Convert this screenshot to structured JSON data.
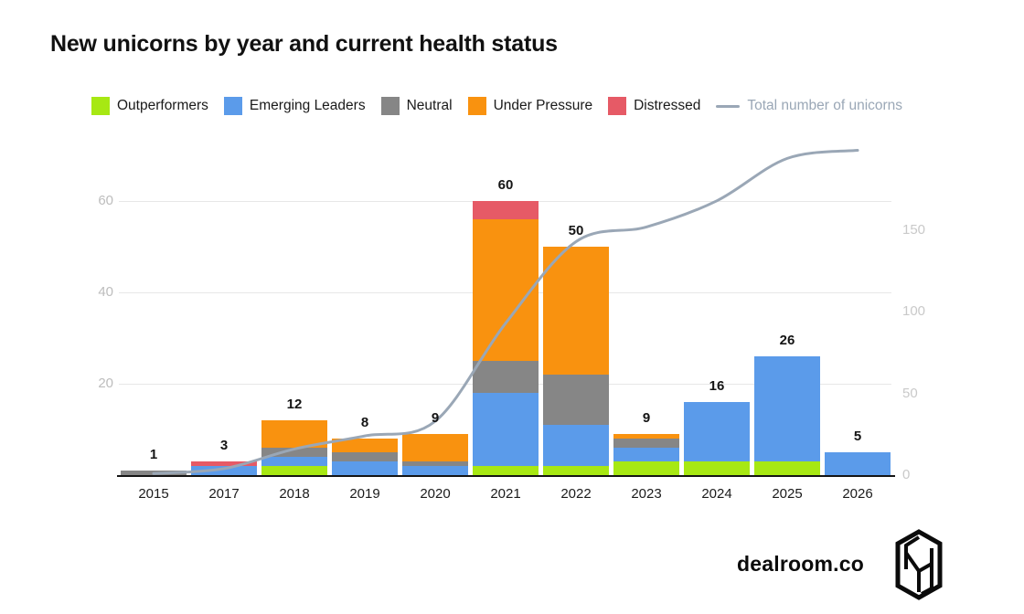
{
  "title": "New unicorns by year and current health status",
  "branding": {
    "name": "dealroom.co"
  },
  "colors": {
    "outperformers": "#A7E813",
    "emerging_leaders": "#5B9BEA",
    "neutral": "#868686",
    "under_pressure": "#F9920F",
    "distressed": "#E65A66",
    "trend_line": "#9AA7B6",
    "grid": "#e7e7e7",
    "axis_text": "#bdbdbd"
  },
  "chart_data": {
    "type": "bar",
    "stacked": true,
    "grid": "horizontal",
    "legend_position": "top",
    "categories": [
      "2015",
      "2017",
      "2018",
      "2019",
      "2020",
      "2021",
      "2022",
      "2023",
      "2024",
      "2025",
      "2026"
    ],
    "series": [
      {
        "name": "Outperformers",
        "type": "bar",
        "color": "#A7E813",
        "values": [
          0,
          0,
          2,
          0,
          0,
          2,
          2,
          3,
          3,
          3,
          0
        ]
      },
      {
        "name": "Emerging Leaders",
        "type": "bar",
        "color": "#5B9BEA",
        "values": [
          0,
          2,
          2,
          3,
          2,
          16,
          9,
          3,
          13,
          23,
          5
        ]
      },
      {
        "name": "Neutral",
        "type": "bar",
        "color": "#868686",
        "values": [
          1,
          0,
          2,
          2,
          1,
          7,
          11,
          2,
          0,
          0,
          0
        ]
      },
      {
        "name": "Under Pressure",
        "type": "bar",
        "color": "#F9920F",
        "values": [
          0,
          0,
          6,
          3,
          6,
          31,
          28,
          1,
          0,
          0,
          0
        ]
      },
      {
        "name": "Distressed",
        "type": "bar",
        "color": "#E65A66",
        "values": [
          0,
          1,
          0,
          0,
          0,
          4,
          0,
          0,
          0,
          0,
          0
        ]
      },
      {
        "name": "Total number of unicorns",
        "type": "line",
        "axis": "right",
        "color": "#9AA7B6",
        "values": [
          1,
          4,
          16,
          24,
          33,
          93,
          143,
          152,
          168,
          194,
          199
        ]
      }
    ],
    "bar_totals": [
      1,
      3,
      12,
      8,
      9,
      60,
      50,
      9,
      16,
      26,
      5
    ],
    "left_axis": {
      "ticks": [
        20,
        40,
        60
      ],
      "label": "",
      "range": [
        0,
        70
      ]
    },
    "right_axis": {
      "ticks": [
        0,
        50,
        100,
        150
      ],
      "label": "",
      "range": [
        0,
        205
      ]
    }
  }
}
